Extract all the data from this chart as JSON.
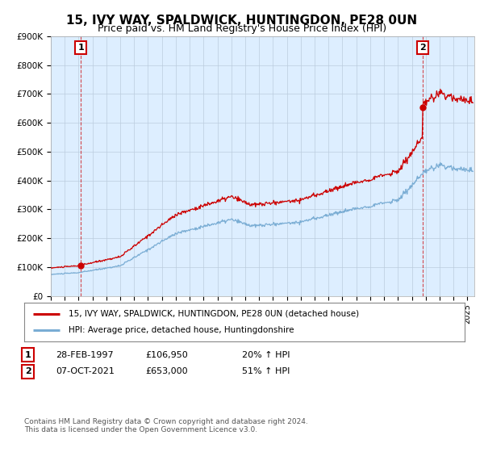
{
  "title": "15, IVY WAY, SPALDWICK, HUNTINGDON, PE28 0UN",
  "subtitle": "Price paid vs. HM Land Registry's House Price Index (HPI)",
  "ylim": [
    0,
    900000
  ],
  "xlim_start": 1995.0,
  "xlim_end": 2025.5,
  "yticks": [
    0,
    100000,
    200000,
    300000,
    400000,
    500000,
    600000,
    700000,
    800000,
    900000
  ],
  "ytick_labels": [
    "£0",
    "£100K",
    "£200K",
    "£300K",
    "£400K",
    "£500K",
    "£600K",
    "£700K",
    "£800K",
    "£900K"
  ],
  "point1_x": 1997.16,
  "point1_y": 106950,
  "point1_label": "1",
  "point2_x": 2021.77,
  "point2_y": 653000,
  "point2_label": "2",
  "red_color": "#cc0000",
  "blue_color": "#7aadd4",
  "chart_bg": "#ddeeff",
  "legend_label_red": "15, IVY WAY, SPALDWICK, HUNTINGDON, PE28 0UN (detached house)",
  "legend_label_blue": "HPI: Average price, detached house, Huntingdonshire",
  "table_row1": [
    "1",
    "28-FEB-1997",
    "£106,950",
    "20% ↑ HPI"
  ],
  "table_row2": [
    "2",
    "07-OCT-2021",
    "£653,000",
    "51% ↑ HPI"
  ],
  "footer": "Contains HM Land Registry data © Crown copyright and database right 2024.\nThis data is licensed under the Open Government Licence v3.0.",
  "background_color": "#ffffff",
  "grid_color": "#bbccdd",
  "title_fontsize": 11,
  "subtitle_fontsize": 9
}
